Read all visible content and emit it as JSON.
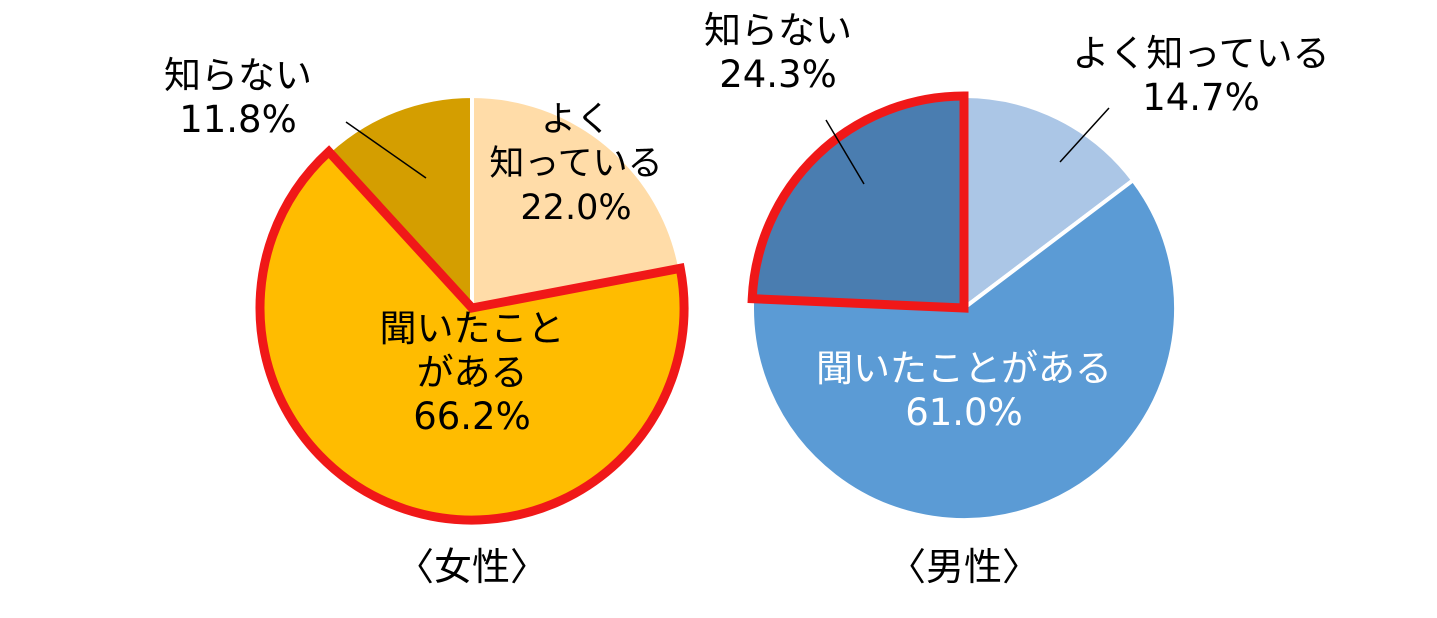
{
  "chart_data": [
    {
      "type": "pie",
      "caption": "〈女性〉",
      "slices": [
        {
          "label": [
            "よく",
            "知っている"
          ],
          "value": 22.0,
          "value_label": "22.0%",
          "color": "#FFDCA8",
          "text_color": "#000000"
        },
        {
          "label": [
            "聞いたこと",
            "がある"
          ],
          "value": 66.2,
          "value_label": "66.2%",
          "color": "#FFBC00",
          "text_color": "#000000"
        },
        {
          "label": [
            "知らない"
          ],
          "value": 11.8,
          "value_label": "11.8%",
          "color": "#D49E00",
          "text_color": "#000000"
        }
      ],
      "highlight": {
        "slice_index": 1,
        "outline_color": "#F01818"
      }
    },
    {
      "type": "pie",
      "caption": "〈男性〉",
      "slices": [
        {
          "label": [
            "よく知っている"
          ],
          "value": 14.7,
          "value_label": "14.7%",
          "color": "#ABC6E6",
          "text_color": "#000000"
        },
        {
          "label": [
            "聞いたことがある"
          ],
          "value": 61.0,
          "value_label": "61.0%",
          "color": "#5B9BD5",
          "text_color": "#ffffff"
        },
        {
          "label": [
            "知らない"
          ],
          "value": 24.3,
          "value_label": "24.3%",
          "color": "#4A7DB0",
          "text_color": "#000000"
        }
      ],
      "highlight": {
        "slice_index": 2,
        "outline_color": "#F01818"
      }
    }
  ]
}
